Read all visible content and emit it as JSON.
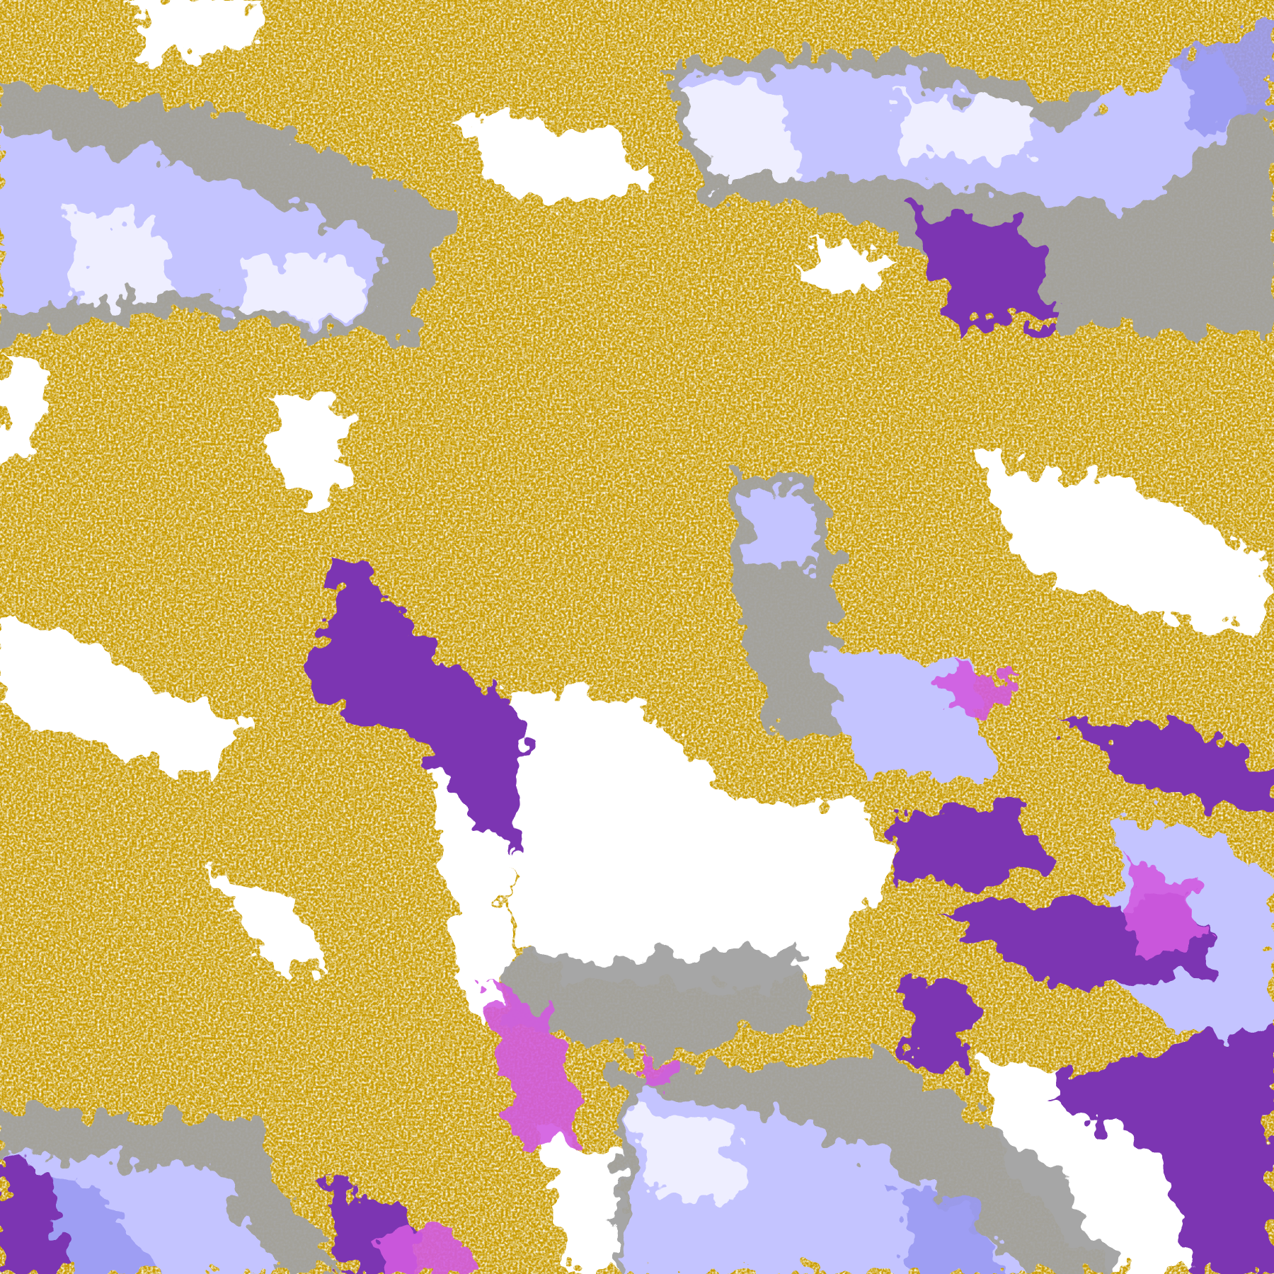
{
  "map": {
    "kind": "classified satellite imagery",
    "palette": {
      "clear": "#ffffff",
      "gold": "#c99c00",
      "purple": "#7b35b2",
      "magenta": "#d25ae0",
      "lavender": "#c4c4ff",
      "pale_lavender": "#eeeeff",
      "periwinkle": "#9a9af2",
      "gray": "#a2a2a2"
    }
  }
}
